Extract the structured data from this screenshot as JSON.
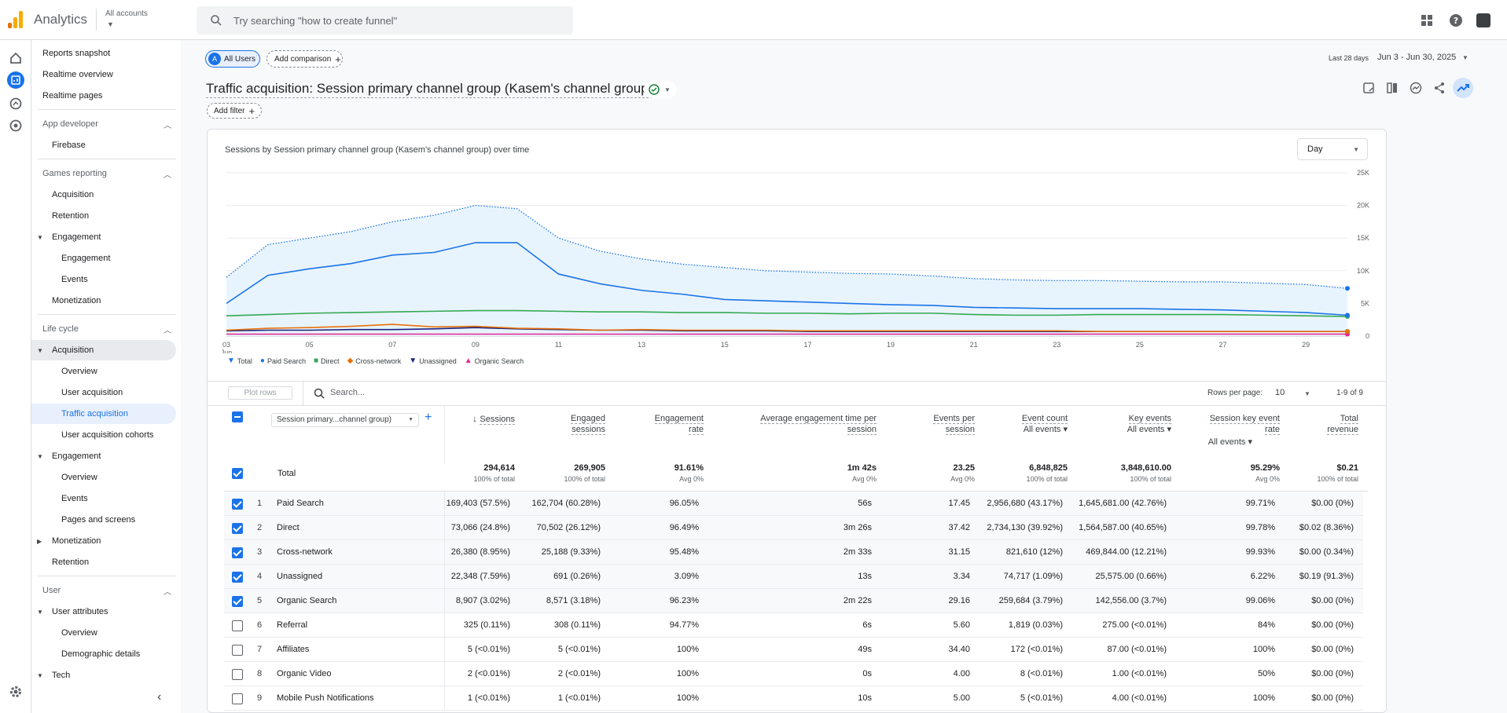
{
  "app": {
    "title": "Analytics",
    "accounts_label": "All accounts"
  },
  "search": {
    "placeholder": "Try searching \"how to create funnel\""
  },
  "sidebar": {
    "top_items": [
      "Reports snapshot",
      "Realtime overview",
      "Realtime pages"
    ],
    "app_developer": {
      "label": "App developer",
      "items": [
        "Firebase"
      ]
    },
    "games_reporting": {
      "label": "Games reporting",
      "items": [
        "Acquisition",
        "Retention",
        "Engagement",
        "Engagement",
        "Events",
        "Monetization"
      ]
    },
    "life_cycle": {
      "label": "Life cycle",
      "acquisition": "Acquisition",
      "acq_items": [
        "Overview",
        "User acquisition",
        "Traffic acquisition",
        "User acquisition cohorts"
      ],
      "engagement": "Engagement",
      "eng_items": [
        "Overview",
        "Events",
        "Pages and screens"
      ],
      "monetization": "Monetization",
      "retention": "Retention"
    },
    "user": {
      "label": "User",
      "attributes": "User attributes",
      "attr_items": [
        "Overview",
        "Demographic details"
      ],
      "tech": "Tech"
    }
  },
  "header": {
    "all_users": "All Users",
    "all_users_initial": "A",
    "add_comparison": "Add comparison",
    "date_prefix": "Last 28 days",
    "date_range": "Jun 3 - Jun 30, 2025",
    "report_title": "Traffic acquisition: Session primary channel group (Kasem's channel group)",
    "add_filter": "Add filter"
  },
  "chart_data": {
    "type": "line",
    "title": "Sessions by Session primary channel group (Kasem's channel group) over time",
    "interval": "Day",
    "x_ticks": [
      "03",
      "05",
      "07",
      "09",
      "11",
      "13",
      "15",
      "17",
      "19",
      "21",
      "23",
      "25",
      "27",
      "29"
    ],
    "x_tick_sub": "Jun",
    "y_ticks": [
      "25K",
      "20K",
      "15K",
      "10K",
      "5K",
      "0"
    ],
    "ylim": [
      0,
      25000
    ],
    "x": [
      3,
      4,
      5,
      6,
      7,
      8,
      9,
      10,
      11,
      12,
      13,
      14,
      15,
      16,
      17,
      18,
      19,
      20,
      21,
      22,
      23,
      24,
      25,
      26,
      27,
      28,
      29,
      30
    ],
    "series": [
      {
        "name": "Total",
        "color": "#1a73e8",
        "style": "dotted",
        "values": [
          9000,
          14000,
          15000,
          16000,
          17500,
          18500,
          20000,
          19500,
          15000,
          13000,
          11800,
          11000,
          10500,
          10000,
          9800,
          9600,
          9500,
          9200,
          8800,
          8600,
          8500,
          8500,
          8400,
          8300,
          8300,
          8100,
          7900,
          7300
        ]
      },
      {
        "name": "Paid Search",
        "color": "#1a73e8",
        "style": "solid",
        "values": [
          5000,
          9300,
          10300,
          11100,
          12400,
          12800,
          14300,
          14300,
          9500,
          8000,
          7000,
          6400,
          5600,
          5400,
          5200,
          5000,
          4800,
          4700,
          4400,
          4300,
          4200,
          4200,
          4200,
          4100,
          4000,
          3800,
          3600,
          3200
        ]
      },
      {
        "name": "Direct",
        "color": "#34a853",
        "style": "solid",
        "values": [
          3100,
          3300,
          3500,
          3600,
          3700,
          3800,
          3900,
          3900,
          3800,
          3700,
          3700,
          3600,
          3600,
          3500,
          3500,
          3400,
          3500,
          3500,
          3300,
          3200,
          3200,
          3300,
          3300,
          3300,
          3300,
          3200,
          3100,
          3000
        ]
      },
      {
        "name": "Cross-network",
        "color": "#e8710a",
        "style": "solid",
        "values": [
          900,
          1200,
          1300,
          1500,
          1800,
          1400,
          1500,
          1200,
          1100,
          900,
          1000,
          900,
          900,
          900,
          800,
          800,
          800,
          800,
          800,
          800,
          800,
          700,
          700,
          700,
          700,
          700,
          700,
          700
        ]
      },
      {
        "name": "Unassigned",
        "color": "#1a237e",
        "style": "solid",
        "values": [
          800,
          900,
          900,
          1000,
          1000,
          1100,
          1300,
          1100,
          1000,
          900,
          900,
          800,
          800,
          800,
          700,
          700,
          700,
          700,
          700,
          700,
          700,
          700,
          700,
          700,
          700,
          700,
          700,
          700
        ]
      },
      {
        "name": "Organic Search",
        "color": "#e52592",
        "style": "solid",
        "values": [
          300,
          300,
          300,
          300,
          300,
          300,
          300,
          300,
          300,
          300,
          300,
          300,
          300,
          300,
          300,
          300,
          300,
          300,
          300,
          300,
          300,
          300,
          300,
          300,
          300,
          300,
          300,
          300
        ]
      }
    ]
  },
  "table": {
    "plot_rows": "Plot rows",
    "search_placeholder": "Search...",
    "rows_per_page_label": "Rows per page:",
    "rows_per_page": "10",
    "pagination": "1-9 of 9",
    "dimension": "Session primary...channel group)",
    "columns": [
      {
        "l1": "Sessions",
        "l2": ""
      },
      {
        "l1": "Engaged",
        "l2": "sessions"
      },
      {
        "l1": "Engagement",
        "l2": "rate"
      },
      {
        "l1": "Average engagement time per",
        "l2": "session"
      },
      {
        "l1": "Events per",
        "l2": "session"
      },
      {
        "l1": "Event count",
        "l2": "All events"
      },
      {
        "l1": "Key events",
        "l2": "All events"
      },
      {
        "l1": "Session key event",
        "l2": "rate",
        "l3": "All events"
      },
      {
        "l1": "Total",
        "l2": "revenue"
      }
    ],
    "total_label": "Total",
    "totals": [
      {
        "v": "294,614",
        "s": "100% of total"
      },
      {
        "v": "269,905",
        "s": "100% of total"
      },
      {
        "v": "91.61%",
        "s": "Avg 0%"
      },
      {
        "v": "1m 42s",
        "s": "Avg 0%"
      },
      {
        "v": "23.25",
        "s": "Avg 0%"
      },
      {
        "v": "6,848,825",
        "s": "100% of total"
      },
      {
        "v": "3,848,610.00",
        "s": "100% of total"
      },
      {
        "v": "95.29%",
        "s": "Avg 0%"
      },
      {
        "v": "$0.21",
        "s": "100% of total"
      }
    ],
    "rows": [
      {
        "n": "1",
        "name": "Paid Search",
        "checked": true,
        "c": [
          "169,403 (57.5%)",
          "162,704 (60.28%)",
          "96.05%",
          "56s",
          "17.45",
          "2,956,680 (43.17%)",
          "1,645,681.00 (42.76%)",
          "99.71%",
          "$0.00 (0%)"
        ]
      },
      {
        "n": "2",
        "name": "Direct",
        "checked": true,
        "c": [
          "73,066 (24.8%)",
          "70,502 (26.12%)",
          "96.49%",
          "3m 26s",
          "37.42",
          "2,734,130 (39.92%)",
          "1,564,587.00 (40.65%)",
          "99.78%",
          "$0.02 (8.36%)"
        ]
      },
      {
        "n": "3",
        "name": "Cross-network",
        "checked": true,
        "c": [
          "26,380 (8.95%)",
          "25,188 (9.33%)",
          "95.48%",
          "2m 33s",
          "31.15",
          "821,610 (12%)",
          "469,844.00 (12.21%)",
          "99.93%",
          "$0.00 (0.34%)"
        ]
      },
      {
        "n": "4",
        "name": "Unassigned",
        "checked": true,
        "c": [
          "22,348 (7.59%)",
          "691 (0.26%)",
          "3.09%",
          "13s",
          "3.34",
          "74,717 (1.09%)",
          "25,575.00 (0.66%)",
          "6.22%",
          "$0.19 (91.3%)"
        ]
      },
      {
        "n": "5",
        "name": "Organic Search",
        "checked": true,
        "c": [
          "8,907 (3.02%)",
          "8,571 (3.18%)",
          "96.23%",
          "2m 22s",
          "29.16",
          "259,684 (3.79%)",
          "142,556.00 (3.7%)",
          "99.06%",
          "$0.00 (0%)"
        ]
      },
      {
        "n": "6",
        "name": "Referral",
        "checked": false,
        "c": [
          "325 (0.11%)",
          "308 (0.11%)",
          "94.77%",
          "6s",
          "5.60",
          "1,819 (0.03%)",
          "275.00 (<0.01%)",
          "84%",
          "$0.00 (0%)"
        ]
      },
      {
        "n": "7",
        "name": "Affiliates",
        "checked": false,
        "c": [
          "5 (<0.01%)",
          "5 (<0.01%)",
          "100%",
          "49s",
          "34.40",
          "172 (<0.01%)",
          "87.00 (<0.01%)",
          "100%",
          "$0.00 (0%)"
        ]
      },
      {
        "n": "8",
        "name": "Organic Video",
        "checked": false,
        "c": [
          "2 (<0.01%)",
          "2 (<0.01%)",
          "100%",
          "0s",
          "4.00",
          "8 (<0.01%)",
          "1.00 (<0.01%)",
          "50%",
          "$0.00 (0%)"
        ]
      },
      {
        "n": "9",
        "name": "Mobile Push Notifications",
        "checked": false,
        "c": [
          "1 (<0.01%)",
          "1 (<0.01%)",
          "100%",
          "10s",
          "5.00",
          "5 (<0.01%)",
          "4.00 (<0.01%)",
          "100%",
          "$0.00 (0%)"
        ]
      }
    ]
  },
  "colors": {
    "accent": "#1a73e8",
    "area_fill": "#e8f4fd"
  }
}
